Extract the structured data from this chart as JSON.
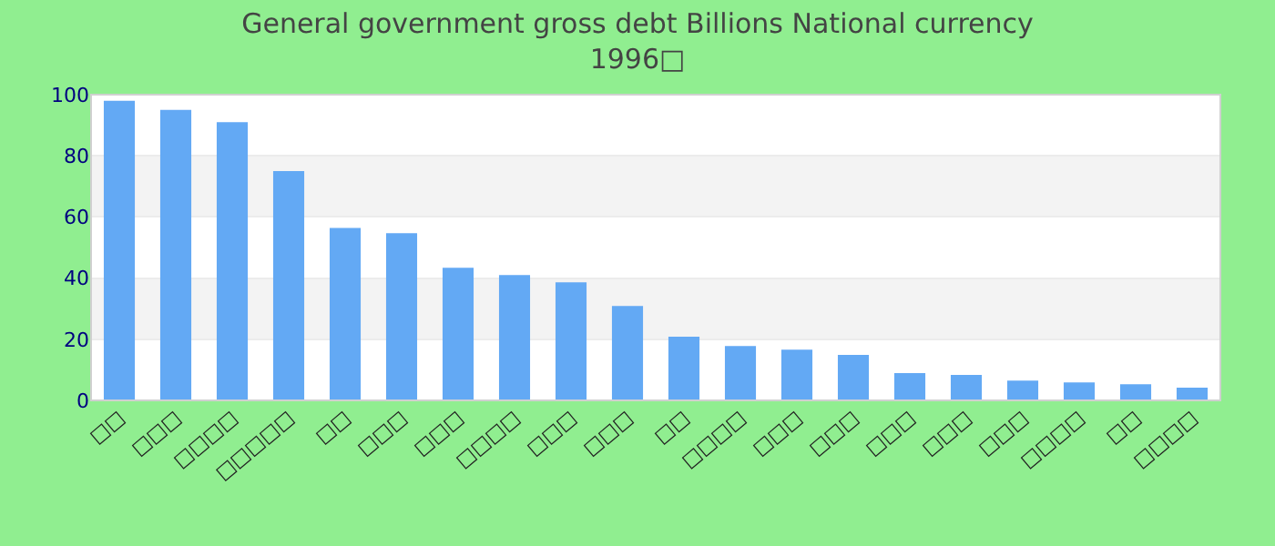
{
  "chart_data": {
    "type": "bar",
    "title": "General government gross debt Billions National currency",
    "subtitle": "1996□",
    "categories": [
      "□□",
      "□□□",
      "□□□□",
      "□□□□□",
      "□□",
      "□□□",
      "□□□",
      "□□□□",
      "□□□",
      "□□□",
      "□□",
      "□□□□",
      "□□□",
      "□□□",
      "□□□",
      "□□□",
      "□□□",
      "□□□□",
      "□□",
      "□□□□"
    ],
    "values": [
      98,
      95,
      91,
      75,
      56.4,
      54.7,
      43.4,
      41,
      38.6,
      30.9,
      20.8,
      17.8,
      16.6,
      14.9,
      8.9,
      8.3,
      6.5,
      5.9,
      5.3,
      4.2
    ],
    "color": "#63a9f4",
    "ylim": [
      0,
      100
    ],
    "yticks": [
      0,
      20,
      40,
      60,
      80,
      100
    ],
    "grid": "y",
    "legend": false
  }
}
